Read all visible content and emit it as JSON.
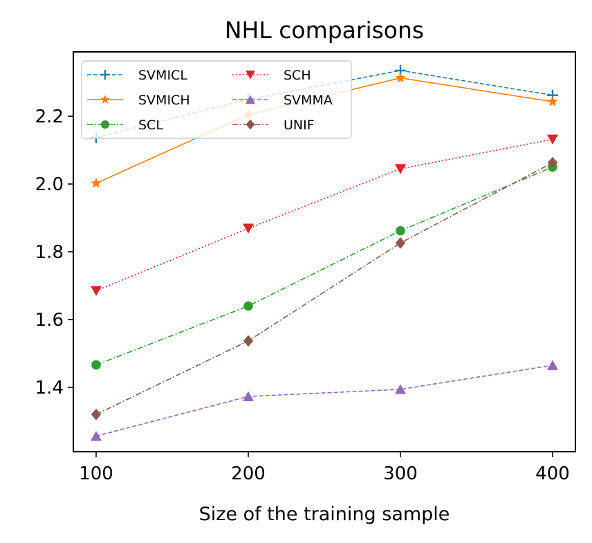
{
  "chart_data": {
    "type": "line",
    "title": "NHL comparisons",
    "xlabel": "Size of the training sample",
    "ylabel": "",
    "x": [
      100,
      200,
      300,
      400
    ],
    "xlim": [
      85,
      415
    ],
    "ylim": [
      1.21,
      2.39
    ],
    "xticks": [
      100,
      200,
      300,
      400
    ],
    "xtick_labels": [
      "100",
      "200",
      "300",
      "400"
    ],
    "yticks": [
      1.4,
      1.6,
      1.8,
      2.0,
      2.2
    ],
    "ytick_labels": [
      "1.4",
      "1.6",
      "1.8",
      "2.0",
      "2.2"
    ],
    "grid": false,
    "legend_position": "top-left",
    "legend_columns": 2,
    "series": [
      {
        "name": "SVMICL",
        "values": [
          2.137,
          2.25,
          2.335,
          2.262
        ],
        "color": "#1f77b4",
        "dash": "dashed",
        "marker": "plus"
      },
      {
        "name": "SVMICH",
        "values": [
          2.002,
          2.205,
          2.313,
          2.243
        ],
        "color": "#ff7f0e",
        "dash": "solid",
        "marker": "star"
      },
      {
        "name": "SCL",
        "values": [
          1.466,
          1.64,
          1.862,
          2.05
        ],
        "color": "#2ca02c",
        "dash": "dashdot",
        "marker": "circle"
      },
      {
        "name": "SCH",
        "values": [
          1.685,
          1.869,
          2.045,
          2.132
        ],
        "color": "#d62728",
        "dash": "dotted",
        "marker": "triangle-down"
      },
      {
        "name": "SVMMA",
        "values": [
          1.256,
          1.373,
          1.394,
          1.465
        ],
        "color": "#9467bd",
        "dash": "dashed",
        "marker": "triangle-up"
      },
      {
        "name": "UNIF",
        "values": [
          1.32,
          1.537,
          1.826,
          2.063
        ],
        "color": "#8c564b",
        "dash": "dashdot",
        "marker": "diamond"
      }
    ]
  }
}
